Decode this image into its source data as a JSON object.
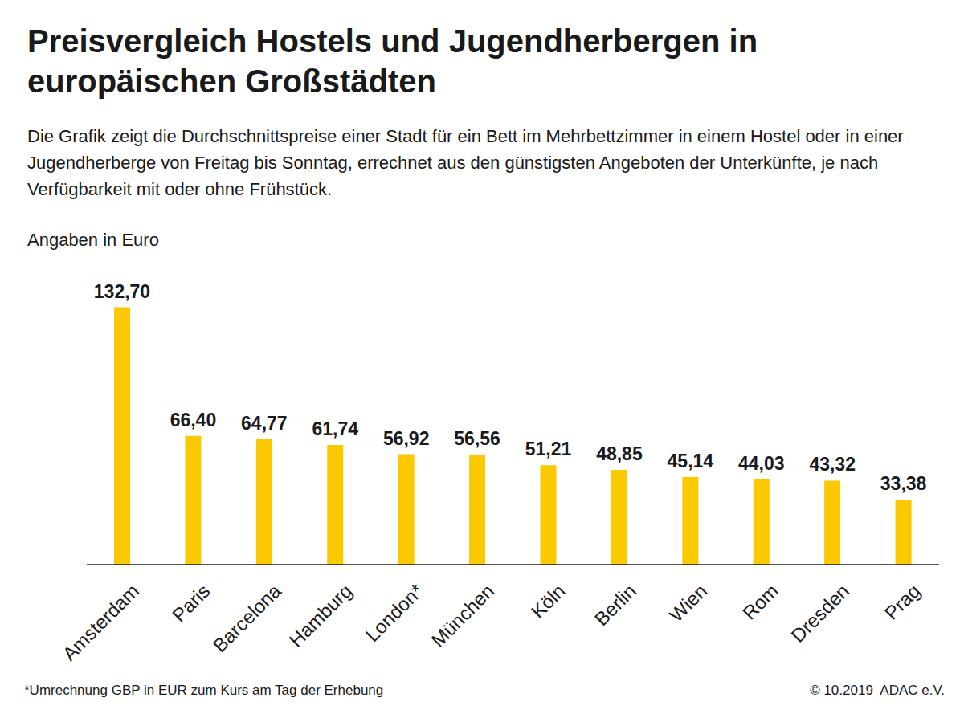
{
  "chart_data": {
    "type": "bar",
    "title": "Preisvergleich Hostels und Jugendherbergen in europäischen Großstädten",
    "subtitle": "Die Grafik zeigt die Durchschnittspreise einer Stadt für ein Bett im Mehrbettzimmer in einem Hostel oder in einer Jugendherberge von Freitag bis Sonntag, errechnet aus den günstigsten Angeboten der Unterkünfte, je nach Verfügbarkeit mit oder ohne Frühstück.",
    "y_label": "Angaben in Euro",
    "categories": [
      "Amsterdam",
      "Paris",
      "Barcelona",
      "Hamburg",
      "London*",
      "München",
      "Köln",
      "Berlin",
      "Wien",
      "Rom",
      "Dresden",
      "Prag"
    ],
    "values": [
      132.7,
      66.4,
      64.77,
      61.74,
      56.92,
      56.56,
      51.21,
      48.85,
      45.14,
      44.03,
      43.32,
      33.38
    ],
    "value_labels": [
      "132,70",
      "66,40",
      "64,77",
      "61,74",
      "56,92",
      "56,56",
      "51,21",
      "48,85",
      "45,14",
      "44,03",
      "43,32",
      "33,38"
    ],
    "color": "#fcc800",
    "data_labels": true,
    "tick_labels": "x",
    "note": "*Umrechnung GBP in EUR zum Kurs am Tag der Erhebung",
    "source": "© 10.2019  ADAC e.V."
  }
}
